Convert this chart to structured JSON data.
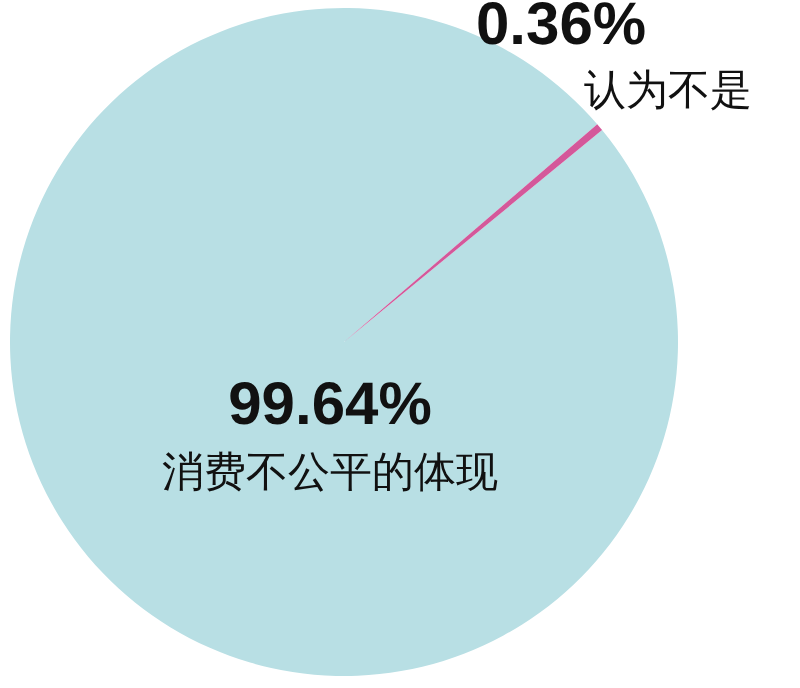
{
  "chart_data": {
    "type": "pie",
    "categories": [
      "消费不公平的体现",
      "认为不是"
    ],
    "values": [
      99.64,
      0.36
    ],
    "value_labels": [
      "99.64%",
      "0.36%"
    ],
    "colors": [
      "#b8dfe4",
      "#d4589a"
    ]
  }
}
